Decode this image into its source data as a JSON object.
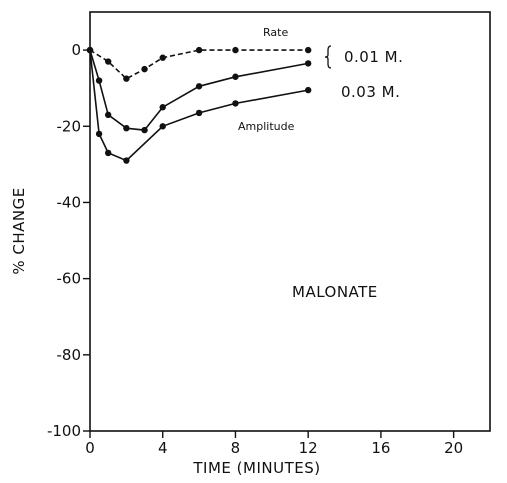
{
  "chart_data": {
    "type": "line",
    "title": "",
    "xlabel": "TIME (MINUTES)",
    "ylabel": "% CHANGE",
    "xlim": [
      0,
      22
    ],
    "ylim": [
      -100,
      10
    ],
    "x_ticks": [
      0,
      4,
      8,
      12,
      16,
      20
    ],
    "x_tick_labels": [
      "0",
      "4",
      "8",
      "12",
      "16",
      "20"
    ],
    "y_ticks": [
      0,
      -20,
      -40,
      -60,
      -80,
      -100
    ],
    "y_tick_labels": [
      "0",
      "-20",
      "-40",
      "-60",
      "-80",
      "-100"
    ],
    "grid": false,
    "series": [
      {
        "label": "Rate",
        "line_style": "dashed",
        "x": [
          0,
          1,
          2,
          3,
          4,
          6,
          8,
          12
        ],
        "y": [
          0,
          -3,
          -7.5,
          -5,
          -2,
          0,
          0,
          0
        ]
      },
      {
        "label": "0.01 M.",
        "line_style": "solid",
        "x": [
          0,
          0.5,
          1,
          2,
          3,
          4,
          6,
          8,
          12
        ],
        "y": [
          0,
          -8,
          -17,
          -20.5,
          -21,
          -15,
          -9.5,
          -7,
          -3.5
        ]
      },
      {
        "label": "0.03 M.",
        "line_style": "solid",
        "x": [
          0,
          0.5,
          1,
          2,
          4,
          6,
          8,
          12
        ],
        "y": [
          0,
          -22,
          -27,
          -29,
          -20,
          -16.5,
          -14,
          -10.5
        ]
      }
    ],
    "annotations": {
      "rate": "Rate",
      "amplitude": "Amplitude",
      "conc1": "0.01  M.",
      "conc2": "0.03  M.",
      "compound": "MALONATE"
    }
  }
}
